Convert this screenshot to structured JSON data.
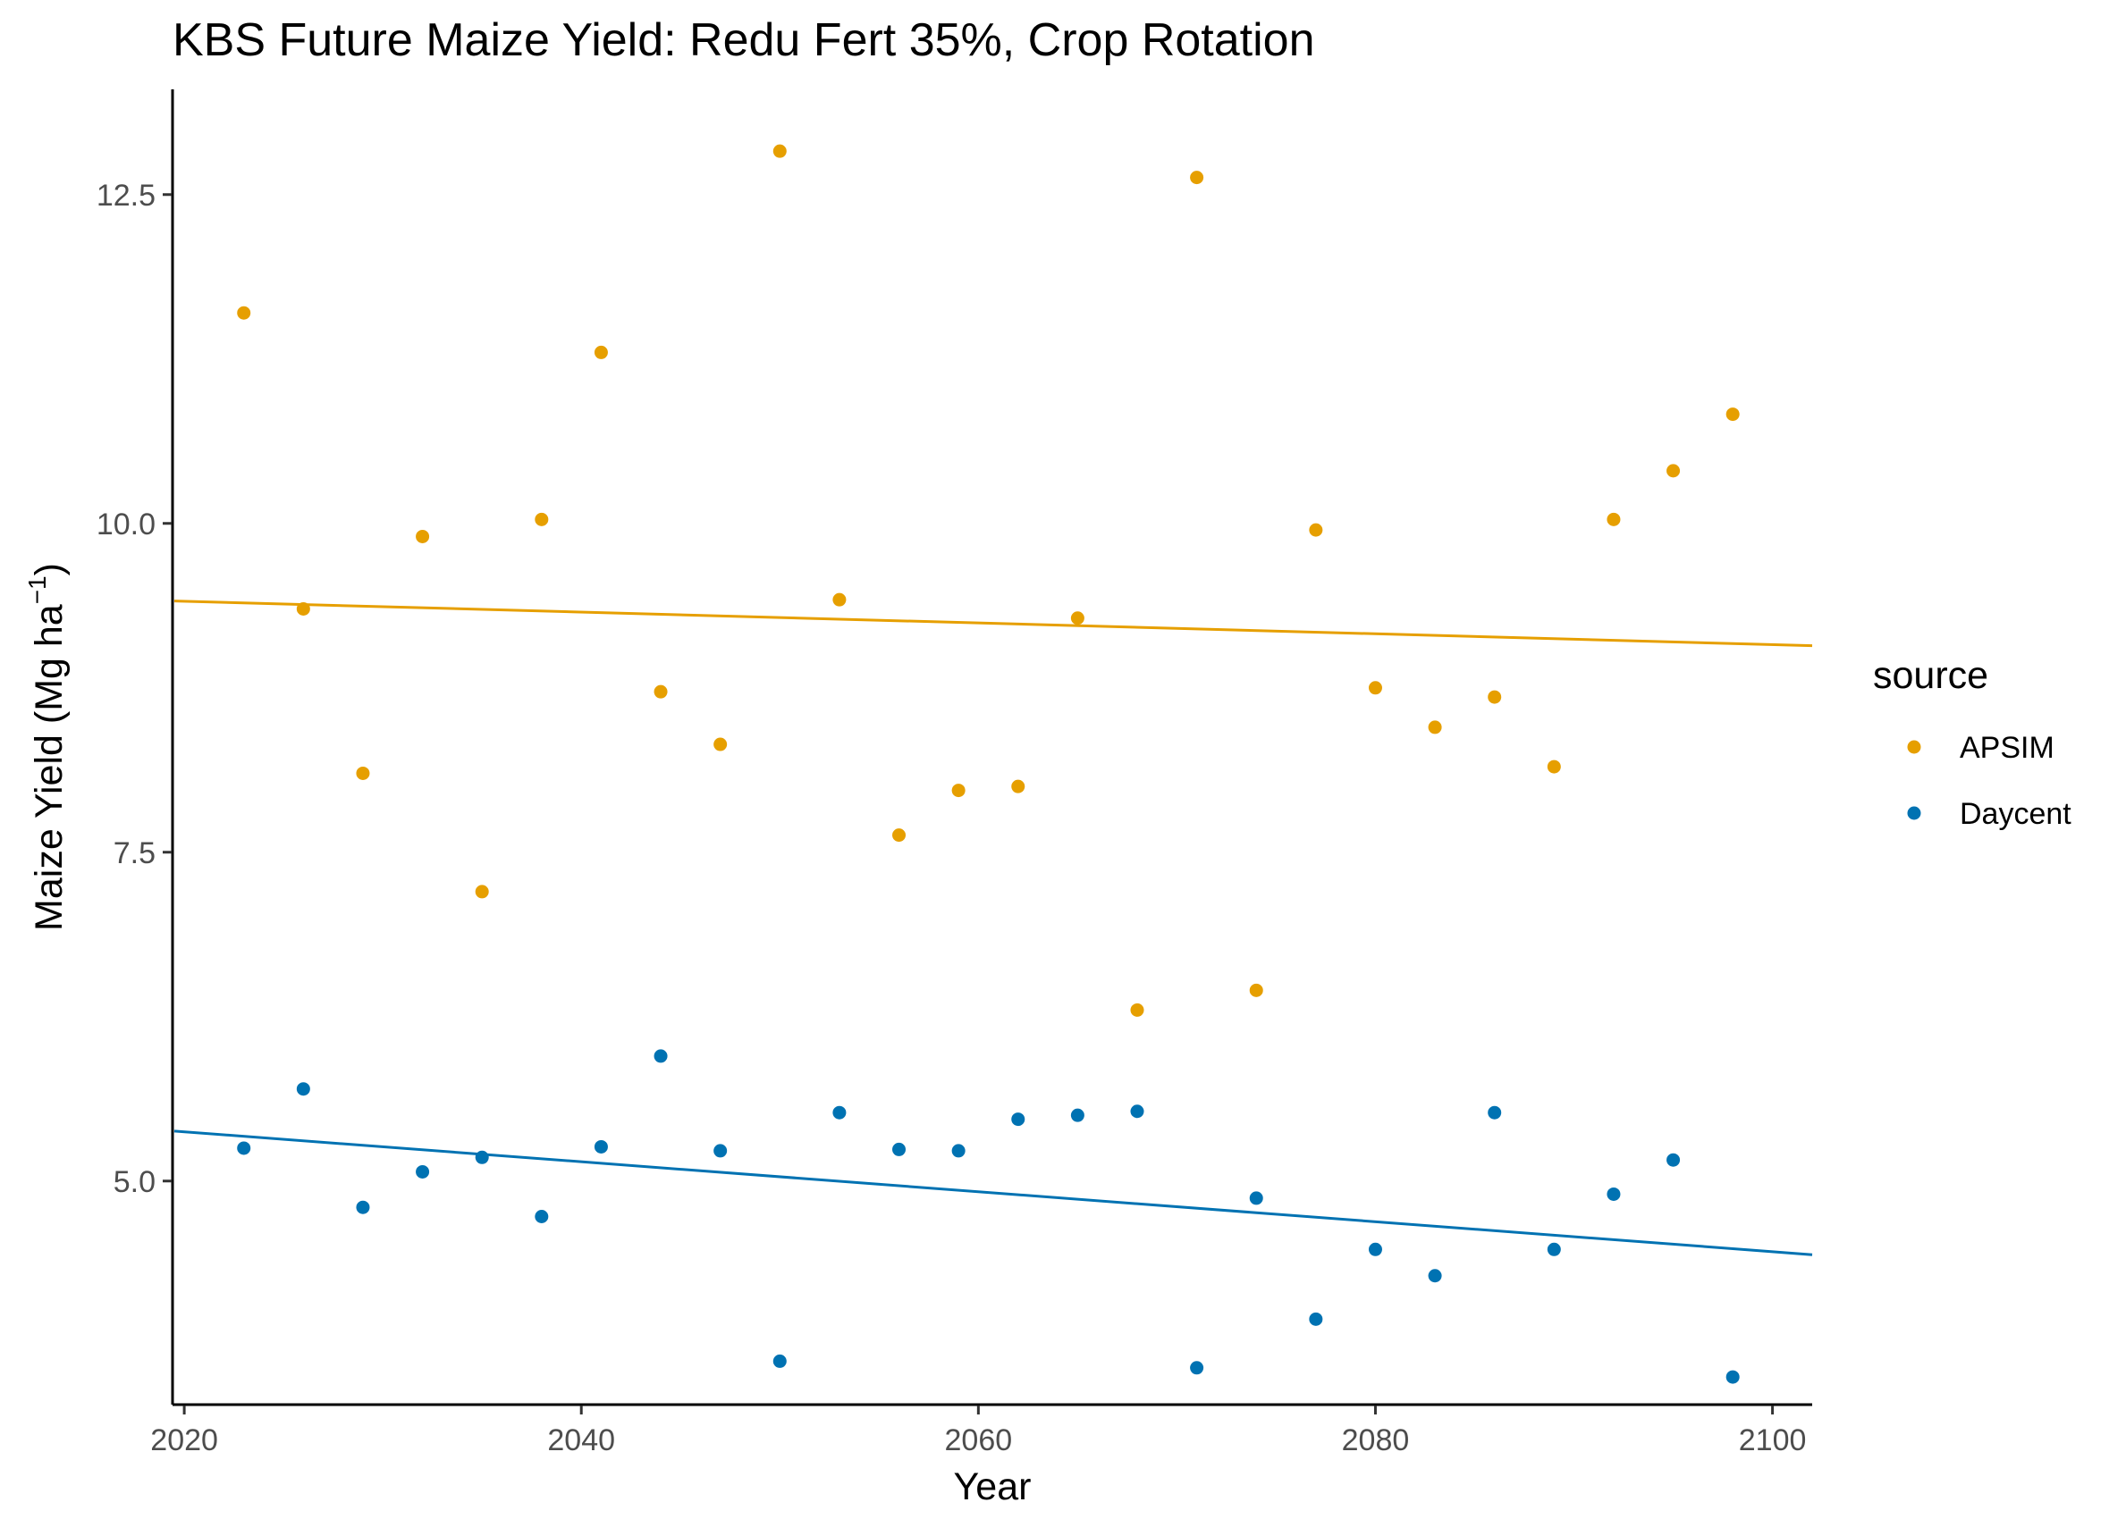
{
  "chart_data": {
    "type": "scatter",
    "title": "KBS Future Maize Yield:  Redu Fert 35%, Crop Rotation",
    "xlabel": "Year",
    "ylabel": {
      "main": "Maize Yield (Mg ha",
      "sup": "−1",
      "close": ")"
    },
    "xlim": [
      2019.5,
      2102
    ],
    "ylim": [
      3.3,
      13.3
    ],
    "x_ticks": [
      2020,
      2040,
      2060,
      2080,
      2100
    ],
    "x_tick_labels": [
      "2020",
      "2040",
      "2060",
      "2080",
      "2100"
    ],
    "y_ticks": [
      5.0,
      7.5,
      10.0,
      12.5
    ],
    "y_tick_labels": [
      "5.0",
      "7.5",
      "10.0",
      "12.5"
    ],
    "grid": false,
    "legend": {
      "title": "source",
      "position": "right"
    },
    "series": [
      {
        "name": "APSIM",
        "color": "#E69F00",
        "x": [
          2023,
          2026,
          2029,
          2032,
          2035,
          2038,
          2041,
          2044,
          2047,
          2050,
          2053,
          2056,
          2059,
          2062,
          2065,
          2068,
          2071,
          2074,
          2077,
          2080,
          2083,
          2086,
          2089,
          2092,
          2095,
          2098
        ],
        "y": [
          11.6,
          9.35,
          8.1,
          9.9,
          7.2,
          10.03,
          11.3,
          8.72,
          8.32,
          12.83,
          9.42,
          7.63,
          7.97,
          8.0,
          9.28,
          6.3,
          12.63,
          6.45,
          9.95,
          8.75,
          8.45,
          8.68,
          8.15,
          10.03,
          10.4,
          10.83
        ],
        "trend": {
          "x": [
            2019.5,
            2102
          ],
          "y": [
            9.41,
            9.07
          ]
        }
      },
      {
        "name": "Daycent",
        "color": "#0072B2",
        "x": [
          2023,
          2026,
          2029,
          2032,
          2035,
          2038,
          2041,
          2044,
          2047,
          2050,
          2053,
          2056,
          2059,
          2062,
          2065,
          2068,
          2071,
          2074,
          2077,
          2080,
          2083,
          2086,
          2089,
          2092,
          2095,
          2098
        ],
        "y": [
          5.25,
          5.7,
          4.8,
          5.07,
          5.18,
          4.73,
          5.26,
          5.95,
          5.23,
          3.63,
          5.52,
          5.24,
          5.23,
          5.47,
          5.5,
          5.53,
          3.58,
          4.87,
          3.95,
          4.48,
          4.28,
          5.52,
          4.48,
          4.9,
          5.16,
          3.51
        ],
        "trend": {
          "x": [
            2019.5,
            2102
          ],
          "y": [
            5.38,
            4.44
          ]
        }
      }
    ]
  }
}
